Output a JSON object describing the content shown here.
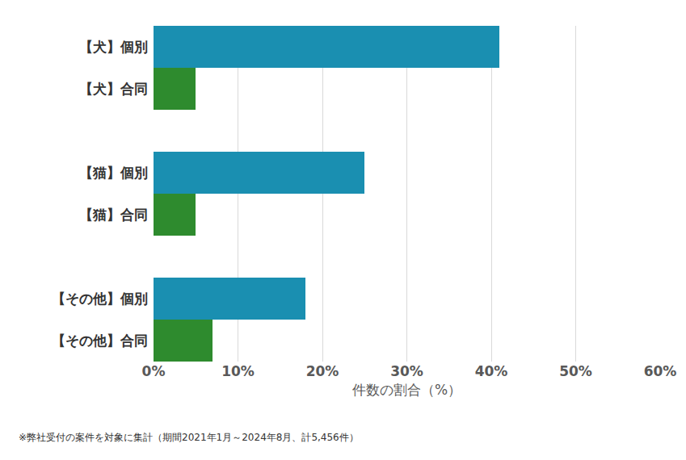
{
  "chart_data": {
    "type": "bar",
    "orientation": "horizontal",
    "categories": [
      "【犬】個別",
      "【犬】合同",
      "【猫】個別",
      "【猫】合同",
      "【その他】個別",
      "【その他】合同"
    ],
    "values": [
      41,
      5,
      25,
      5,
      18,
      7
    ],
    "colors": [
      "#1a8fb1",
      "#2e8b2e",
      "#1a8fb1",
      "#2e8b2e",
      "#1a8fb1",
      "#2e8b2e"
    ],
    "x_label": "件数の割合（%）",
    "xlim": [
      0,
      60
    ],
    "xticks": [
      {
        "value": 0,
        "label": "0%"
      },
      {
        "value": 10,
        "label": "10%"
      },
      {
        "value": 20,
        "label": "20%"
      },
      {
        "value": 30,
        "label": "30%"
      },
      {
        "value": 40,
        "label": "40%"
      },
      {
        "value": 50,
        "label": "50%"
      },
      {
        "value": 60,
        "label": "60%"
      }
    ],
    "grid": true,
    "annotations": [
      "※弊社受付の案件を対象に集計（期間2021年1月～2024年8月、計5,456件）"
    ]
  }
}
